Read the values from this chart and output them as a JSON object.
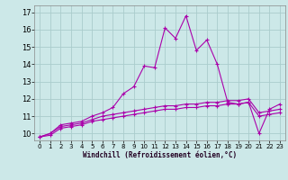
{
  "xlabel": "Windchill (Refroidissement éolien,°C)",
  "bg_color": "#cce8e8",
  "grid_color": "#aacccc",
  "line_color": "#aa00aa",
  "x_ticks": [
    0,
    1,
    2,
    3,
    4,
    5,
    6,
    7,
    8,
    9,
    10,
    11,
    12,
    13,
    14,
    15,
    16,
    17,
    18,
    19,
    20,
    21,
    22,
    23
  ],
  "y_ticks": [
    10,
    11,
    12,
    13,
    14,
    15,
    16,
    17
  ],
  "ylim": [
    9.6,
    17.4
  ],
  "xlim": [
    -0.5,
    23.5
  ],
  "series1_x": [
    0,
    1,
    2,
    3,
    4,
    5,
    6,
    7,
    8,
    9,
    10,
    11,
    12,
    13,
    14,
    15,
    16,
    17,
    18,
    19,
    20,
    21,
    22,
    23
  ],
  "series1_y": [
    9.8,
    10.0,
    10.5,
    10.6,
    10.7,
    11.0,
    11.2,
    11.5,
    12.3,
    12.7,
    13.9,
    13.8,
    16.1,
    15.5,
    16.8,
    14.8,
    15.4,
    14.0,
    11.8,
    11.7,
    11.8,
    10.0,
    11.4,
    11.7
  ],
  "series2_x": [
    0,
    1,
    2,
    3,
    4,
    5,
    6,
    7,
    8,
    9,
    10,
    11,
    12,
    13,
    14,
    15,
    16,
    17,
    18,
    19,
    20,
    21,
    22,
    23
  ],
  "series2_y": [
    9.8,
    10.0,
    10.4,
    10.5,
    10.6,
    10.8,
    11.0,
    11.1,
    11.2,
    11.3,
    11.4,
    11.5,
    11.6,
    11.6,
    11.7,
    11.7,
    11.8,
    11.8,
    11.9,
    11.9,
    12.0,
    11.2,
    11.3,
    11.4
  ],
  "series3_x": [
    0,
    1,
    2,
    3,
    4,
    5,
    6,
    7,
    8,
    9,
    10,
    11,
    12,
    13,
    14,
    15,
    16,
    17,
    18,
    19,
    20,
    21,
    22,
    23
  ],
  "series3_y": [
    9.8,
    9.9,
    10.3,
    10.4,
    10.5,
    10.7,
    10.8,
    10.9,
    11.0,
    11.1,
    11.2,
    11.3,
    11.4,
    11.4,
    11.5,
    11.5,
    11.6,
    11.6,
    11.7,
    11.7,
    11.8,
    11.0,
    11.1,
    11.2
  ]
}
